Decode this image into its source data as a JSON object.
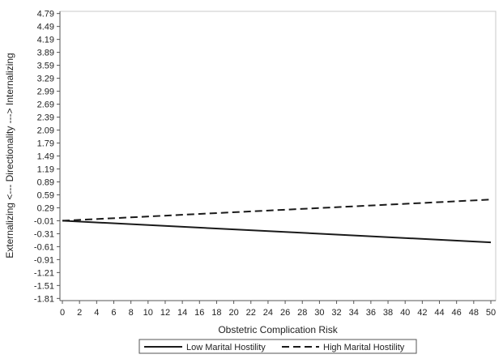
{
  "chart_data": {
    "type": "line",
    "xlabel": "Obstetric Complication Risk",
    "ylabel": "Externalizing <--- Directionality ---> Internalizing",
    "x_ticks": [
      0,
      2,
      4,
      6,
      8,
      10,
      12,
      14,
      16,
      18,
      20,
      22,
      24,
      26,
      28,
      30,
      32,
      34,
      36,
      38,
      40,
      42,
      44,
      46,
      48,
      50
    ],
    "y_ticks": [
      "4.79",
      "4.49",
      "4.19",
      "3.89",
      "3.59",
      "3.29",
      "2.99",
      "2.69",
      "2.39",
      "2.09",
      "1.79",
      "1.49",
      "1.19",
      "0.89",
      "0.59",
      "0.29",
      "-0.01",
      "-0.31",
      "-0.61",
      "-0.91",
      "-1.21",
      "-1.51",
      "-1.81"
    ],
    "xlim": [
      0,
      50
    ],
    "ylim": [
      -1.86,
      4.84
    ],
    "grid": false,
    "legend_position": "bottom",
    "series": [
      {
        "name": "Low Marital Hostility",
        "line_style": "solid",
        "color": "#1a1a1a",
        "x": [
          0,
          50
        ],
        "y": [
          -0.01,
          -0.51
        ]
      },
      {
        "name": "High Marital Hostility",
        "line_style": "dashed",
        "color": "#1a1a1a",
        "x": [
          0,
          50
        ],
        "y": [
          -0.01,
          0.48
        ]
      }
    ]
  }
}
